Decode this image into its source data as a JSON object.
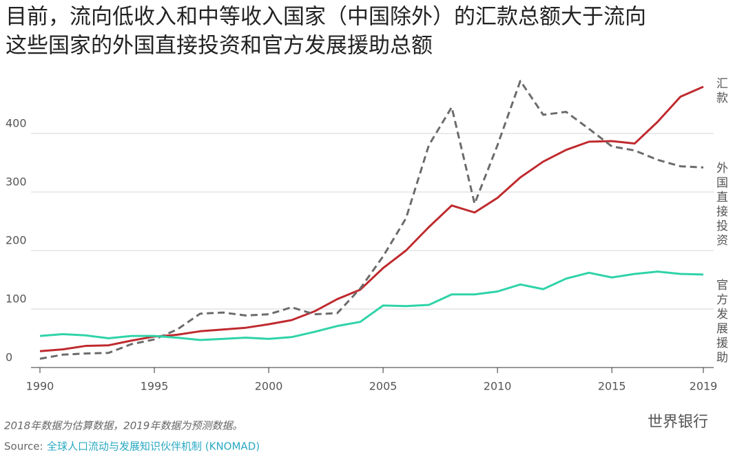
{
  "chart_data": {
    "type": "line",
    "title": [
      "目前，流向低收入和中等收入国家（中国除外）的汇款总额大于流向",
      "这些国家的外国直接投资和官方发展援助总额"
    ],
    "x": [
      1990,
      1991,
      1992,
      1993,
      1994,
      1995,
      1996,
      1997,
      1998,
      1999,
      2000,
      2001,
      2002,
      2003,
      2004,
      2005,
      2006,
      2007,
      2008,
      2009,
      2010,
      2011,
      2012,
      2013,
      2014,
      2015,
      2016,
      2017,
      2018,
      2019
    ],
    "series": [
      {
        "name": "汇款",
        "color": "#bf2a2e",
        "dashed": false,
        "values": [
          28,
          31,
          37,
          38,
          46,
          53,
          56,
          62,
          65,
          68,
          74,
          81,
          96,
          117,
          133,
          170,
          200,
          240,
          277,
          265,
          290,
          325,
          352,
          372,
          386,
          387,
          383,
          420,
          463,
          480
        ]
      },
      {
        "name": "外国直接投资",
        "color": "#6b6b6b",
        "dashed": true,
        "values": [
          15,
          22,
          24,
          25,
          40,
          48,
          65,
          92,
          94,
          89,
          91,
          103,
          91,
          93,
          135,
          190,
          255,
          380,
          445,
          280,
          380,
          490,
          432,
          437,
          408,
          378,
          371,
          355,
          344,
          342
        ]
      },
      {
        "name": "官方发展援助",
        "color": "#2fd3a8",
        "dashed": false,
        "values": [
          54,
          57,
          55,
          50,
          54,
          54,
          51,
          47,
          49,
          51,
          49,
          52,
          61,
          71,
          78,
          106,
          105,
          107,
          125,
          125,
          130,
          142,
          134,
          152,
          162,
          154,
          160,
          164,
          160,
          159
        ]
      }
    ],
    "xlim": [
      1990,
      2019
    ],
    "xticks": [
      1990,
      1995,
      2000,
      2005,
      2010,
      2015,
      2019
    ],
    "ylim": [
      0,
      500
    ],
    "yticks": [
      0,
      100,
      200,
      300,
      400
    ],
    "grid": true,
    "note": "2018年数据为估算数据，2019年数据为预测数据。",
    "source_label": "Source:",
    "source": "全球人口流动与发展知识伙伴机制 (KNOMAD)",
    "watermark": "世界银行"
  }
}
